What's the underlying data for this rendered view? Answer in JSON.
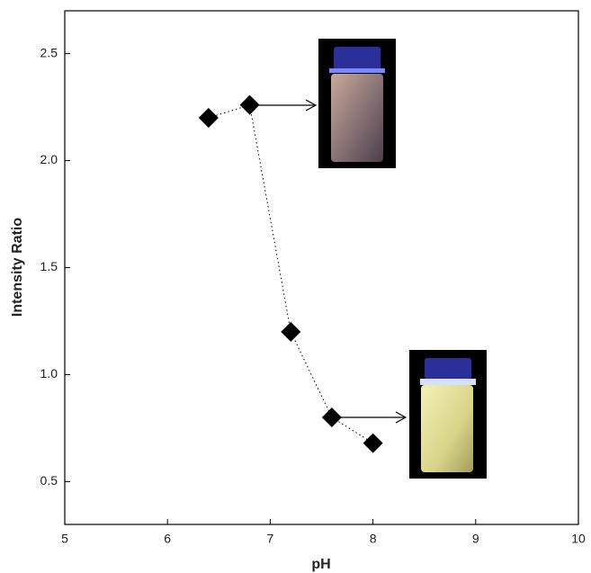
{
  "chart_data": {
    "type": "scatter",
    "x_label": "pH",
    "y_label": "Intensity Ratio",
    "x": [
      6.4,
      6.8,
      7.2,
      7.6,
      8.0
    ],
    "values": [
      2.2,
      2.26,
      1.2,
      0.8,
      0.68
    ],
    "color": "#000000",
    "xlim": [
      5,
      10
    ],
    "xticks": [
      5,
      6,
      7,
      8,
      9,
      10
    ],
    "ylim": [
      0.3,
      2.7
    ],
    "yticks": [
      {
        "value": 0.5,
        "label": "0.5"
      },
      {
        "value": 1.0,
        "label": "1.0"
      },
      {
        "value": 1.5,
        "label": "1.5"
      },
      {
        "value": 2.0,
        "label": "2.0"
      },
      {
        "value": 2.5,
        "label": "2.5"
      }
    ]
  }
}
